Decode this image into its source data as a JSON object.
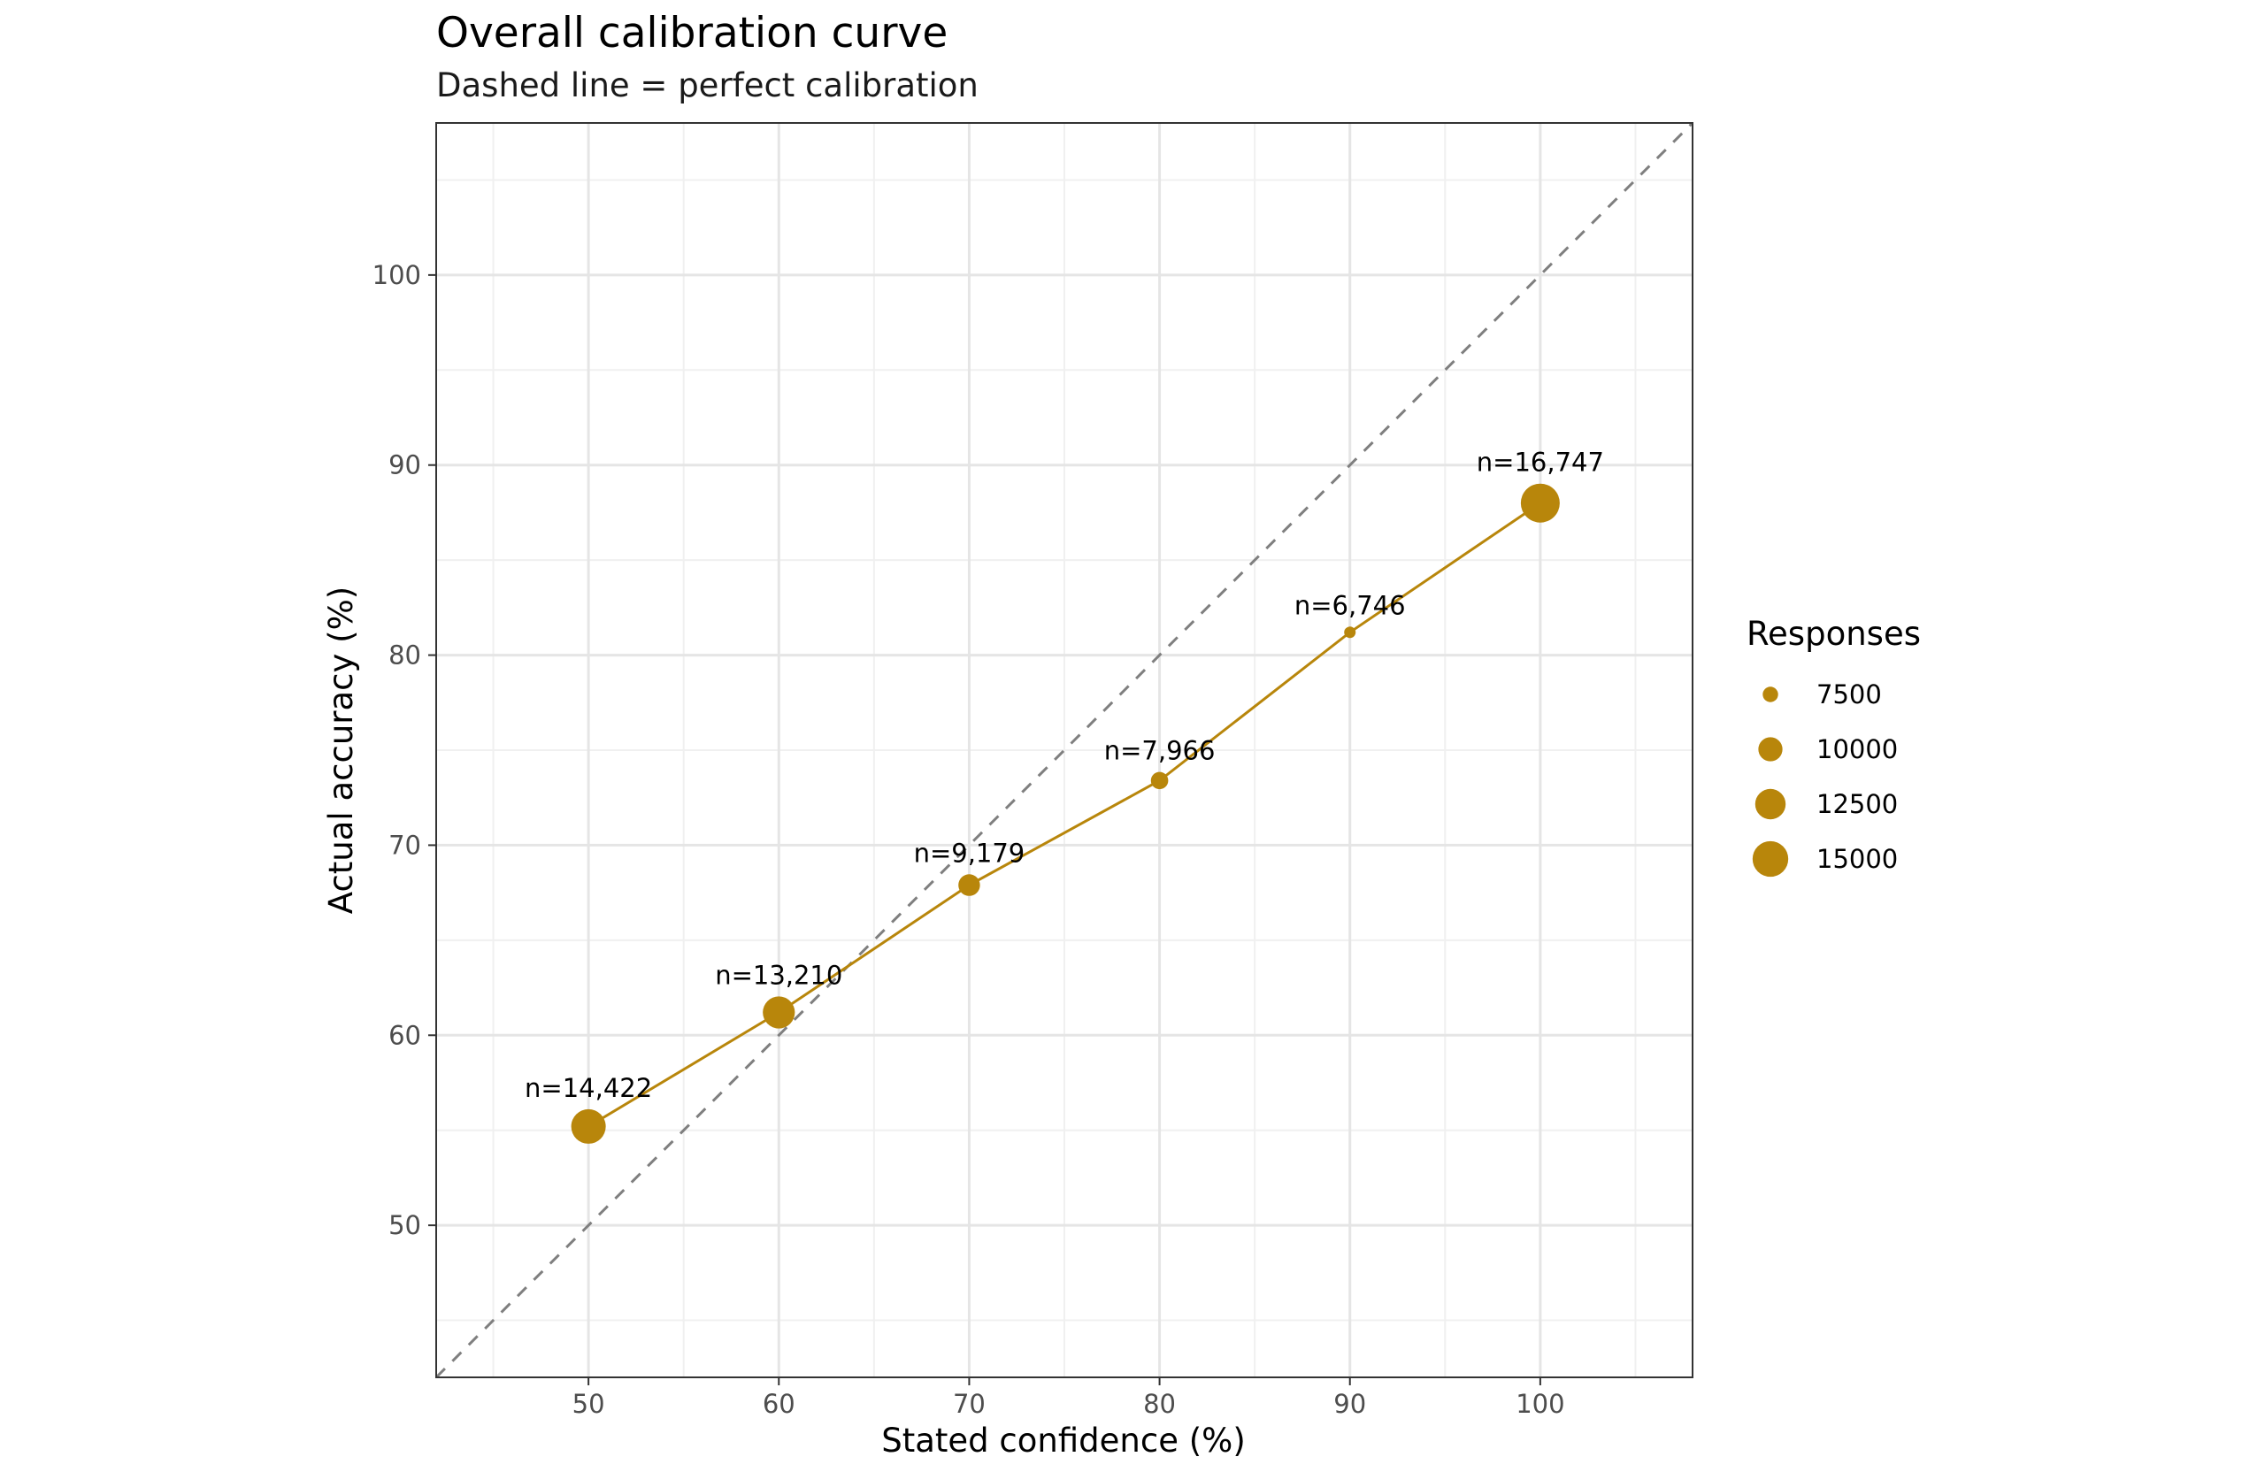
{
  "chart_data": {
    "type": "scatter",
    "title": "Overall calibration curve",
    "subtitle": "Dashed line = perfect calibration",
    "xlabel": "Stated confidence (%)",
    "ylabel": "Actual accuracy (%)",
    "xlim": [
      42,
      108
    ],
    "ylim": [
      42,
      108
    ],
    "x_ticks": [
      50,
      60,
      70,
      80,
      90,
      100
    ],
    "y_ticks": [
      50,
      60,
      70,
      80,
      90,
      100
    ],
    "grid": true,
    "reference_line": {
      "style": "dashed",
      "slope": 1,
      "intercept": 0,
      "color": "#7f7f7f"
    },
    "series": [
      {
        "name": "Calibration",
        "color": "#B8860B",
        "points": [
          {
            "x": 50,
            "y": 55.2,
            "n": 14422,
            "label": "n=14,422"
          },
          {
            "x": 60,
            "y": 61.2,
            "n": 13210,
            "label": "n=13,210"
          },
          {
            "x": 70,
            "y": 67.9,
            "n": 9179,
            "label": "n=9,179"
          },
          {
            "x": 80,
            "y": 73.4,
            "n": 7966,
            "label": "n=7,966"
          },
          {
            "x": 90,
            "y": 81.2,
            "n": 6746,
            "label": "n=6,746"
          },
          {
            "x": 100,
            "y": 88.0,
            "n": 16747,
            "label": "n=16,747"
          }
        ]
      }
    ],
    "legend": {
      "title": "Responses",
      "position": "right",
      "entries": [
        {
          "value": 7500,
          "label": "7500"
        },
        {
          "value": 10000,
          "label": "10000"
        },
        {
          "value": 12500,
          "label": "12500"
        },
        {
          "value": 15000,
          "label": "15000"
        }
      ]
    },
    "size_range": [
      6746,
      16747
    ]
  }
}
